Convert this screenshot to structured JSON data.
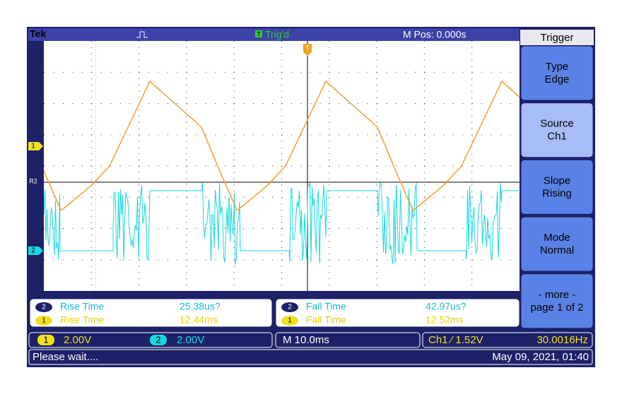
{
  "top_bar": {
    "brand": "Tek",
    "trigger_icon": "T",
    "trigger_status": "Trig'd",
    "position": "M Pos: 0.000s"
  },
  "trigger_marker": "T",
  "menu": {
    "title": "Trigger",
    "buttons": [
      {
        "label": "Type",
        "value": "Edge"
      },
      {
        "label": "Source",
        "value": "Ch1"
      },
      {
        "label": "Slope",
        "value": "Rising"
      },
      {
        "label": "Mode",
        "value": "Normal"
      },
      {
        "label": "- more -",
        "value": "page 1 of 2"
      }
    ]
  },
  "markers": {
    "ch1": "1",
    "ref2": "R2",
    "ch2": "2"
  },
  "measurements": {
    "left": [
      {
        "channel": "2",
        "name": "Rise Time",
        "value": "25.38us?"
      },
      {
        "channel": "1",
        "name": "Rise Time",
        "value": "12.44ms"
      }
    ],
    "right": [
      {
        "channel": "2",
        "name": "Fall Time",
        "value": "42.97us?"
      },
      {
        "channel": "1",
        "name": "Fall Time",
        "value": "12.52ms"
      }
    ]
  },
  "settings": {
    "ch1_badge": "1",
    "ch1_scale": "2.00V",
    "ch2_badge": "2",
    "ch2_scale": "2.00V",
    "timebase": "M 10.0ms",
    "trigger_level": "Ch1 ⁄ 1.52V",
    "frequency": "30.0016Hz"
  },
  "status": {
    "message": "Please wait....",
    "datetime": "May 09, 2021, 01:40"
  }
}
